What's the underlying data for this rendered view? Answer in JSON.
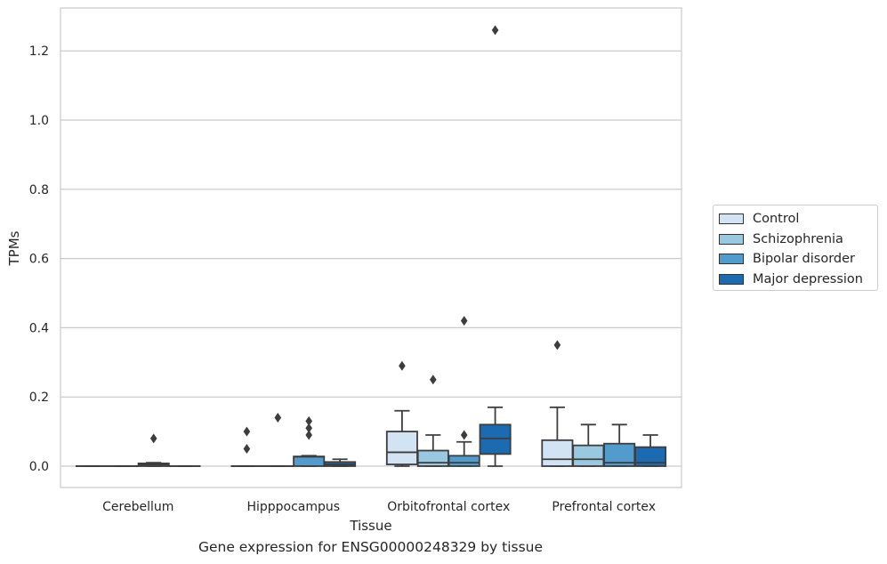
{
  "chart_data": {
    "type": "box",
    "title": "",
    "caption": "Gene expression for ENSG00000248329 by tissue",
    "xlabel": "Tissue",
    "ylabel": "TPMs",
    "ylim": [
      -0.062,
      1.33
    ],
    "yticks": [
      "0.0",
      "0.2",
      "0.4",
      "0.6",
      "0.8",
      "1.0",
      "1.2"
    ],
    "ytick_values": [
      0,
      0.2,
      0.4,
      0.6,
      0.8,
      1.0,
      1.2
    ],
    "grid": "horizontal",
    "legend_position": "right",
    "categories": [
      "Cerebellum",
      "Hipppocampus",
      "Orbitofrontal cortex",
      "Prefrontal cortex"
    ],
    "series": [
      {
        "name": "Control",
        "color": "#d2e3f3",
        "boxes": [
          {
            "q1": 0,
            "median": 0,
            "q3": 0,
            "whislo": 0,
            "whishi": 0,
            "fliers": []
          },
          {
            "q1": 0,
            "median": 0,
            "q3": 0,
            "whislo": 0,
            "whishi": 0,
            "fliers": [
              0.05,
              0.1
            ]
          },
          {
            "q1": 0.005,
            "median": 0.04,
            "q3": 0.1,
            "whislo": 0,
            "whishi": 0.16,
            "fliers": [
              0.29
            ]
          },
          {
            "q1": 0,
            "median": 0.02,
            "q3": 0.075,
            "whislo": 0,
            "whishi": 0.17,
            "fliers": [
              0.35
            ]
          }
        ]
      },
      {
        "name": "Schizophrenia",
        "color": "#9ac8e0",
        "boxes": [
          {
            "q1": 0,
            "median": 0,
            "q3": 0,
            "whislo": 0,
            "whishi": 0,
            "fliers": []
          },
          {
            "q1": 0,
            "median": 0,
            "q3": 0,
            "whislo": 0,
            "whishi": 0,
            "fliers": [
              0.14
            ]
          },
          {
            "q1": 0,
            "median": 0.01,
            "q3": 0.045,
            "whislo": 0,
            "whishi": 0.09,
            "fliers": [
              0.25
            ]
          },
          {
            "q1": 0,
            "median": 0.02,
            "q3": 0.06,
            "whislo": 0,
            "whishi": 0.12,
            "fliers": []
          }
        ]
      },
      {
        "name": "Bipolar disorder",
        "color": "#519ccc",
        "boxes": [
          {
            "q1": 0,
            "median": 0.005,
            "q3": 0.008,
            "whislo": 0,
            "whishi": 0.01,
            "fliers": [
              0.08
            ]
          },
          {
            "q1": 0,
            "median": 0.027,
            "q3": 0.028,
            "whislo": 0,
            "whishi": 0.03,
            "fliers": [
              0.09,
              0.11,
              0.13
            ]
          },
          {
            "q1": 0,
            "median": 0.01,
            "q3": 0.03,
            "whislo": 0,
            "whishi": 0.07,
            "fliers": [
              0.09,
              0.42
            ]
          },
          {
            "q1": 0,
            "median": 0.01,
            "q3": 0.065,
            "whislo": 0,
            "whishi": 0.12,
            "fliers": []
          }
        ]
      },
      {
        "name": "Major depression",
        "color": "#1c6aaf",
        "boxes": [
          {
            "q1": 0,
            "median": 0,
            "q3": 0,
            "whislo": 0,
            "whishi": 0,
            "fliers": []
          },
          {
            "q1": 0,
            "median": 0.005,
            "q3": 0.012,
            "whislo": 0,
            "whishi": 0.02,
            "fliers": []
          },
          {
            "q1": 0.035,
            "median": 0.08,
            "q3": 0.12,
            "whislo": 0,
            "whishi": 0.17,
            "fliers": [
              1.26
            ]
          },
          {
            "q1": 0,
            "median": 0.01,
            "q3": 0.055,
            "whislo": 0,
            "whishi": 0.09,
            "fliers": []
          }
        ]
      }
    ]
  }
}
